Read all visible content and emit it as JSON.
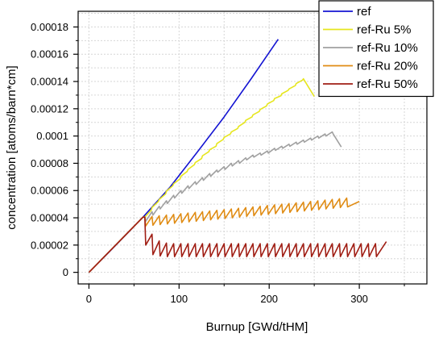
{
  "chart_data": {
    "type": "line",
    "xlabel": "Burnup [GWd/tHM]",
    "ylabel": "concentration [atoms/barn*cm]",
    "xlim": [
      -12,
      375
    ],
    "ylim": [
      -8.5e-06,
      0.0001915
    ],
    "x_ticks": [
      0,
      100,
      200,
      300
    ],
    "x_tick_labels": [
      "0",
      "100",
      "200",
      "300"
    ],
    "y_ticks": [
      0,
      2e-05,
      4e-05,
      6e-05,
      8e-05,
      0.0001,
      0.00012,
      0.00014,
      0.00016,
      0.00018
    ],
    "y_tick_labels": [
      "0",
      "0.00002",
      "0.00004",
      "0.00006",
      "0.00008",
      "0.0001",
      "0.00012",
      "0.00014",
      "0.00016",
      "0.00018"
    ],
    "grid": true,
    "legend_position": "top-right",
    "series": [
      {
        "name": "ref",
        "color": "#1414d2",
        "points": [
          [
            0,
            0
          ],
          [
            30,
            2e-05
          ],
          [
            60,
            4.05e-05
          ],
          [
            90,
            6.25e-05
          ],
          [
            120,
            8.8e-05
          ],
          [
            150,
            0.000114
          ],
          [
            180,
            0.000142
          ],
          [
            210,
            0.000171
          ]
        ]
      },
      {
        "name": "ref-Ru 5%",
        "color": "#e6e61e",
        "points": [
          [
            0,
            0
          ],
          [
            60,
            4.05e-05
          ],
          [
            62,
            4.05e-05
          ],
          [
            69,
            4.55e-05
          ],
          [
            70,
            4.75e-05
          ],
          [
            77,
            5.2e-05
          ],
          [
            78,
            5.35e-05
          ],
          [
            85,
            5.75e-05
          ],
          [
            86,
            5.95e-05
          ],
          [
            93,
            6.35e-05
          ],
          [
            94,
            6.5e-05
          ],
          [
            101,
            6.85e-05
          ],
          [
            102,
            7.05e-05
          ],
          [
            109,
            7.4e-05
          ],
          [
            110,
            7.55e-05
          ],
          [
            117,
            7.9e-05
          ],
          [
            118,
            8.05e-05
          ],
          [
            125,
            8.35e-05
          ],
          [
            126,
            8.55e-05
          ],
          [
            133,
            8.85e-05
          ],
          [
            134,
            9e-05
          ],
          [
            141,
            9.25e-05
          ],
          [
            142,
            9.45e-05
          ],
          [
            149,
            9.75e-05
          ],
          [
            150,
            9.9e-05
          ],
          [
            157,
            0.0001015
          ],
          [
            158,
            0.000103
          ],
          [
            165,
            0.0001055
          ],
          [
            166,
            0.000107
          ],
          [
            173,
            0.00011
          ],
          [
            174,
            0.0001115
          ],
          [
            181,
            0.000114
          ],
          [
            182,
            0.0001155
          ],
          [
            189,
            0.000118
          ],
          [
            190,
            0.0001195
          ],
          [
            197,
            0.000122
          ],
          [
            198,
            0.0001235
          ],
          [
            205,
            0.000126
          ],
          [
            206,
            0.0001275
          ],
          [
            213,
            0.0001295
          ],
          [
            214,
            0.000131
          ],
          [
            221,
            0.0001335
          ],
          [
            222,
            0.0001345
          ],
          [
            229,
            0.000137
          ],
          [
            230,
            0.0001385
          ],
          [
            237,
            0.000141
          ],
          [
            238,
            0.000142
          ],
          [
            250,
            0.000129
          ]
        ]
      },
      {
        "name": "ref-Ru 10%",
        "color": "#a0a0a0",
        "points": [
          [
            0,
            0
          ],
          [
            60,
            4.05e-05
          ],
          [
            62,
            4.05e-05
          ],
          [
            63,
            3.75e-05
          ],
          [
            70,
            4.45e-05
          ],
          [
            71,
            4.2e-05
          ],
          [
            78,
            4.85e-05
          ],
          [
            79,
            4.65e-05
          ],
          [
            86,
            5.25e-05
          ],
          [
            87,
            5.05e-05
          ],
          [
            94,
            5.65e-05
          ],
          [
            95,
            5.45e-05
          ],
          [
            102,
            6e-05
          ],
          [
            103,
            5.8e-05
          ],
          [
            110,
            6.35e-05
          ],
          [
            111,
            6.15e-05
          ],
          [
            118,
            6.65e-05
          ],
          [
            119,
            6.45e-05
          ],
          [
            126,
            6.95e-05
          ],
          [
            127,
            6.75e-05
          ],
          [
            134,
            7.25e-05
          ],
          [
            135,
            7.05e-05
          ],
          [
            142,
            7.5e-05
          ],
          [
            143,
            7.35e-05
          ],
          [
            150,
            7.75e-05
          ],
          [
            151,
            7.55e-05
          ],
          [
            158,
            8e-05
          ],
          [
            159,
            7.8e-05
          ],
          [
            166,
            8.2e-05
          ],
          [
            167,
            8e-05
          ],
          [
            174,
            8.4e-05
          ],
          [
            175,
            8.25e-05
          ],
          [
            182,
            8.6e-05
          ],
          [
            183,
            8.45e-05
          ],
          [
            190,
            8.75e-05
          ],
          [
            191,
            8.6e-05
          ],
          [
            198,
            8.9e-05
          ],
          [
            199,
            8.75e-05
          ],
          [
            206,
            9.1e-05
          ],
          [
            207,
            8.95e-05
          ],
          [
            214,
            9.25e-05
          ],
          [
            215,
            9.1e-05
          ],
          [
            222,
            9.4e-05
          ],
          [
            223,
            9.25e-05
          ],
          [
            230,
            9.55e-05
          ],
          [
            231,
            9.4e-05
          ],
          [
            238,
            9.7e-05
          ],
          [
            239,
            9.55e-05
          ],
          [
            246,
            9.85e-05
          ],
          [
            247,
            9.7e-05
          ],
          [
            254,
            0.0001
          ],
          [
            255,
            9.85e-05
          ],
          [
            262,
            0.0001015
          ],
          [
            263,
            0.0001
          ],
          [
            270,
            0.000103
          ],
          [
            271,
            0.0001015
          ],
          [
            280,
            9.2e-05
          ]
        ]
      },
      {
        "name": "ref-Ru 20%",
        "color": "#e08c14",
        "points": [
          [
            0,
            0
          ],
          [
            60,
            4.05e-05
          ],
          [
            62,
            4.05e-05
          ],
          [
            63,
            3.4e-05
          ],
          [
            70,
            4.1e-05
          ],
          [
            71,
            3.45e-05
          ],
          [
            78,
            4.15e-05
          ],
          [
            79,
            3.5e-05
          ],
          [
            86,
            4.2e-05
          ],
          [
            87,
            3.55e-05
          ],
          [
            94,
            4.25e-05
          ],
          [
            95,
            3.6e-05
          ],
          [
            102,
            4.3e-05
          ],
          [
            103,
            3.65e-05
          ],
          [
            110,
            4.35e-05
          ],
          [
            111,
            3.7e-05
          ],
          [
            118,
            4.4e-05
          ],
          [
            119,
            3.75e-05
          ],
          [
            126,
            4.45e-05
          ],
          [
            127,
            3.8e-05
          ],
          [
            134,
            4.5e-05
          ],
          [
            135,
            3.85e-05
          ],
          [
            142,
            4.55e-05
          ],
          [
            143,
            3.9e-05
          ],
          [
            150,
            4.6e-05
          ],
          [
            151,
            3.95e-05
          ],
          [
            158,
            4.65e-05
          ],
          [
            159,
            4e-05
          ],
          [
            166,
            4.7e-05
          ],
          [
            167,
            4.05e-05
          ],
          [
            174,
            4.75e-05
          ],
          [
            175,
            4.1e-05
          ],
          [
            182,
            4.8e-05
          ],
          [
            183,
            4.15e-05
          ],
          [
            190,
            4.85e-05
          ],
          [
            191,
            4.2e-05
          ],
          [
            198,
            4.9e-05
          ],
          [
            199,
            4.25e-05
          ],
          [
            206,
            4.95e-05
          ],
          [
            207,
            4.3e-05
          ],
          [
            214,
            5e-05
          ],
          [
            215,
            4.35e-05
          ],
          [
            222,
            5.05e-05
          ],
          [
            223,
            4.4e-05
          ],
          [
            230,
            5.1e-05
          ],
          [
            231,
            4.45e-05
          ],
          [
            238,
            5.15e-05
          ],
          [
            239,
            4.5e-05
          ],
          [
            246,
            5.2e-05
          ],
          [
            247,
            4.55e-05
          ],
          [
            254,
            5.25e-05
          ],
          [
            255,
            4.6e-05
          ],
          [
            262,
            5.3e-05
          ],
          [
            263,
            4.65e-05
          ],
          [
            270,
            5.35e-05
          ],
          [
            271,
            4.7e-05
          ],
          [
            278,
            5.4e-05
          ],
          [
            279,
            4.75e-05
          ],
          [
            286,
            5.45e-05
          ],
          [
            287,
            4.8e-05
          ],
          [
            300,
            5.2e-05
          ]
        ]
      },
      {
        "name": "ref-Ru 50%",
        "color": "#a01e14",
        "points": [
          [
            0,
            0
          ],
          [
            60,
            4.05e-05
          ],
          [
            62,
            4.05e-05
          ],
          [
            63,
            2e-05
          ],
          [
            70,
            2.8e-05
          ],
          [
            71,
            1.3e-05
          ],
          [
            78,
            2.3e-05
          ],
          [
            79,
            1.2e-05
          ],
          [
            86,
            2.15e-05
          ],
          [
            87,
            1.15e-05
          ],
          [
            94,
            2.1e-05
          ],
          [
            95,
            1.15e-05
          ],
          [
            102,
            2.1e-05
          ],
          [
            103,
            1.15e-05
          ],
          [
            110,
            2.1e-05
          ],
          [
            111,
            1.15e-05
          ],
          [
            118,
            2.1e-05
          ],
          [
            119,
            1.15e-05
          ],
          [
            126,
            2.1e-05
          ],
          [
            127,
            1.15e-05
          ],
          [
            134,
            2.1e-05
          ],
          [
            135,
            1.15e-05
          ],
          [
            142,
            2.1e-05
          ],
          [
            143,
            1.15e-05
          ],
          [
            150,
            2.1e-05
          ],
          [
            151,
            1.15e-05
          ],
          [
            158,
            2.1e-05
          ],
          [
            159,
            1.15e-05
          ],
          [
            166,
            2.1e-05
          ],
          [
            167,
            1.15e-05
          ],
          [
            174,
            2.1e-05
          ],
          [
            175,
            1.15e-05
          ],
          [
            182,
            2.1e-05
          ],
          [
            183,
            1.15e-05
          ],
          [
            190,
            2.1e-05
          ],
          [
            191,
            1.15e-05
          ],
          [
            198,
            2.1e-05
          ],
          [
            199,
            1.15e-05
          ],
          [
            206,
            2.1e-05
          ],
          [
            207,
            1.15e-05
          ],
          [
            214,
            2.1e-05
          ],
          [
            215,
            1.15e-05
          ],
          [
            222,
            2.1e-05
          ],
          [
            223,
            1.15e-05
          ],
          [
            230,
            2.1e-05
          ],
          [
            231,
            1.15e-05
          ],
          [
            238,
            2.1e-05
          ],
          [
            239,
            1.15e-05
          ],
          [
            246,
            2.1e-05
          ],
          [
            247,
            1.15e-05
          ],
          [
            254,
            2.1e-05
          ],
          [
            255,
            1.15e-05
          ],
          [
            262,
            2.1e-05
          ],
          [
            263,
            1.15e-05
          ],
          [
            270,
            2.1e-05
          ],
          [
            271,
            1.15e-05
          ],
          [
            278,
            2.1e-05
          ],
          [
            279,
            1.15e-05
          ],
          [
            286,
            2.1e-05
          ],
          [
            287,
            1.15e-05
          ],
          [
            294,
            2.1e-05
          ],
          [
            295,
            1.15e-05
          ],
          [
            302,
            2.1e-05
          ],
          [
            303,
            1.15e-05
          ],
          [
            310,
            2.1e-05
          ],
          [
            311,
            1.15e-05
          ],
          [
            318,
            2.1e-05
          ],
          [
            319,
            1.15e-05
          ],
          [
            330,
            2.25e-05
          ]
        ]
      }
    ]
  }
}
